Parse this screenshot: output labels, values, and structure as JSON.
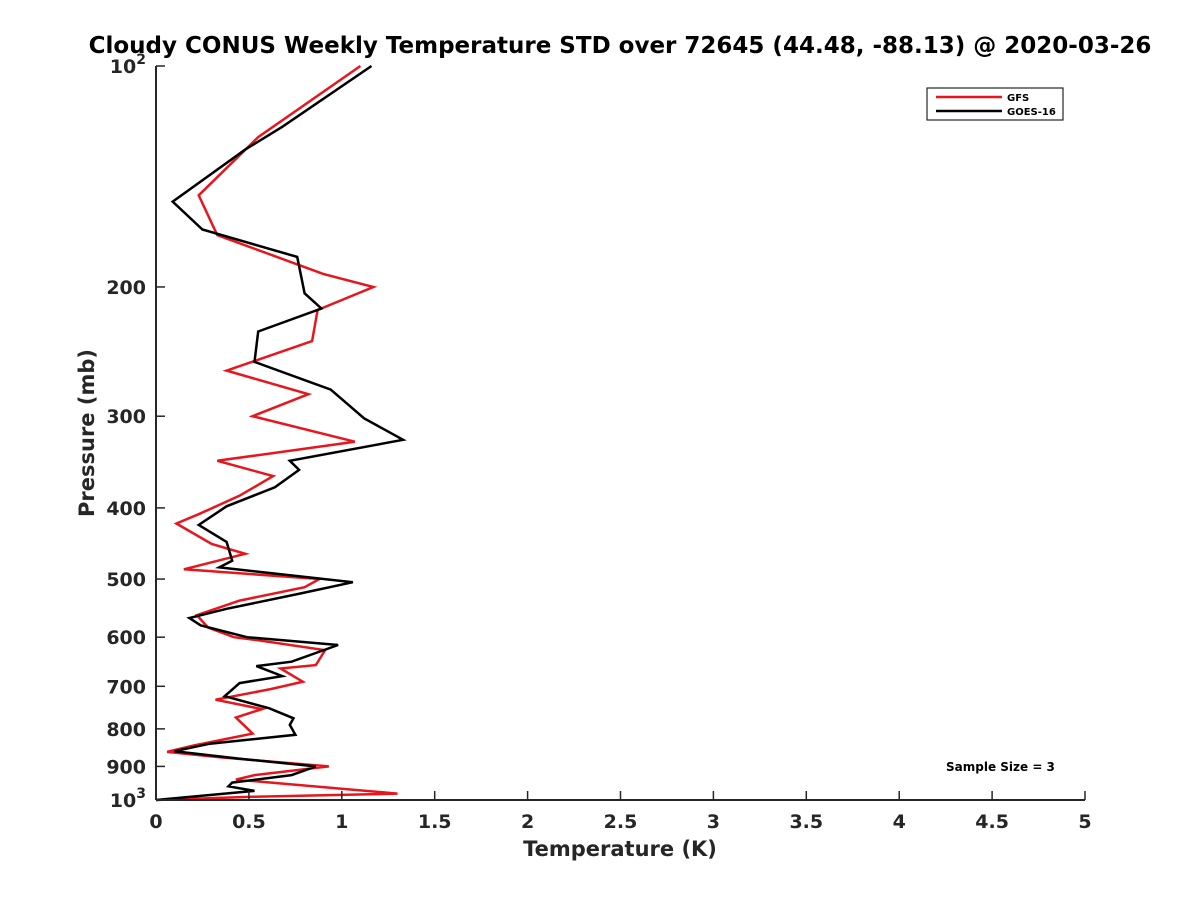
{
  "chart_data": {
    "type": "line",
    "title": "Cloudy CONUS Weekly Temperature STD over 72645 (44.48, -88.13) @ 2020-03-26",
    "xlabel": "Temperature (K)",
    "ylabel": "Pressure (mb)",
    "xlim": [
      0,
      5
    ],
    "ylim": [
      100,
      1000
    ],
    "yscale": "log",
    "yreversed": true,
    "grid": false,
    "legend_position": "top-right",
    "x_ticks": [
      "0",
      "0.5",
      "1",
      "1.5",
      "2",
      "2.5",
      "3",
      "3.5",
      "4",
      "4.5",
      "5"
    ],
    "y_ticks": [
      {
        "value": 100,
        "base": "10",
        "exp": "2"
      },
      {
        "value": 200,
        "label": "200"
      },
      {
        "value": 300,
        "label": "300"
      },
      {
        "value": 400,
        "label": "400"
      },
      {
        "value": 500,
        "label": "500"
      },
      {
        "value": 600,
        "label": "600"
      },
      {
        "value": 700,
        "label": "700"
      },
      {
        "value": 800,
        "label": "800"
      },
      {
        "value": 900,
        "label": "900"
      },
      {
        "value": 1000,
        "base": "10",
        "exp": "3"
      }
    ],
    "series": [
      {
        "name": "GFS",
        "color": "#e8161c",
        "points": [
          [
            1.1,
            100
          ],
          [
            0.55,
            125
          ],
          [
            0.23,
            150
          ],
          [
            0.33,
            170
          ],
          [
            0.9,
            192
          ],
          [
            1.17,
            200
          ],
          [
            0.87,
            215
          ],
          [
            0.84,
            237
          ],
          [
            0.38,
            260
          ],
          [
            0.82,
            280
          ],
          [
            0.52,
            300
          ],
          [
            1.07,
            325
          ],
          [
            0.33,
            345
          ],
          [
            0.63,
            362
          ],
          [
            0.45,
            385
          ],
          [
            0.23,
            408
          ],
          [
            0.11,
            420
          ],
          [
            0.3,
            448
          ],
          [
            0.48,
            462
          ],
          [
            0.15,
            485
          ],
          [
            0.88,
            500
          ],
          [
            0.8,
            513
          ],
          [
            0.45,
            535
          ],
          [
            0.22,
            560
          ],
          [
            0.28,
            582
          ],
          [
            0.42,
            600
          ],
          [
            0.55,
            606
          ],
          [
            0.91,
            625
          ],
          [
            0.86,
            655
          ],
          [
            0.67,
            662
          ],
          [
            0.79,
            690
          ],
          [
            0.62,
            706
          ],
          [
            0.32,
            730
          ],
          [
            0.57,
            752
          ],
          [
            0.43,
            772
          ],
          [
            0.52,
            812
          ],
          [
            0.2,
            843
          ],
          [
            0.06,
            860
          ],
          [
            0.35,
            875
          ],
          [
            0.93,
            900
          ],
          [
            0.53,
            925
          ],
          [
            0.43,
            938
          ],
          [
            1.3,
            980
          ],
          [
            0.52,
            990
          ],
          [
            0,
            1000
          ]
        ]
      },
      {
        "name": "GOES-16",
        "color": "#000000",
        "points": [
          [
            1.16,
            100
          ],
          [
            0.68,
            121
          ],
          [
            0.48,
            130
          ],
          [
            0.09,
            153
          ],
          [
            0.25,
            167
          ],
          [
            0.76,
            182
          ],
          [
            0.8,
            204
          ],
          [
            0.89,
            214
          ],
          [
            0.55,
            230
          ],
          [
            0.53,
            253
          ],
          [
            0.94,
            276
          ],
          [
            1.12,
            302
          ],
          [
            1.33,
            323
          ],
          [
            0.72,
            345
          ],
          [
            0.77,
            355
          ],
          [
            0.64,
            375
          ],
          [
            0.38,
            398
          ],
          [
            0.23,
            422
          ],
          [
            0.38,
            445
          ],
          [
            0.41,
            472
          ],
          [
            0.34,
            482
          ],
          [
            1.06,
            505
          ],
          [
            0.78,
            523
          ],
          [
            0.38,
            549
          ],
          [
            0.18,
            565
          ],
          [
            0.24,
            578
          ],
          [
            0.49,
            600
          ],
          [
            0.98,
            615
          ],
          [
            0.73,
            648
          ],
          [
            0.54,
            657
          ],
          [
            0.68,
            678
          ],
          [
            0.45,
            693
          ],
          [
            0.37,
            722
          ],
          [
            0.61,
            750
          ],
          [
            0.74,
            774
          ],
          [
            0.72,
            790
          ],
          [
            0.75,
            815
          ],
          [
            0.29,
            838
          ],
          [
            0.1,
            858
          ],
          [
            0.44,
            878
          ],
          [
            0.86,
            900
          ],
          [
            0.73,
            925
          ],
          [
            0.41,
            947
          ],
          [
            0.39,
            958
          ],
          [
            0.53,
            972
          ],
          [
            0,
            1000
          ]
        ]
      }
    ],
    "annotation": "Sample Size = 3"
  }
}
